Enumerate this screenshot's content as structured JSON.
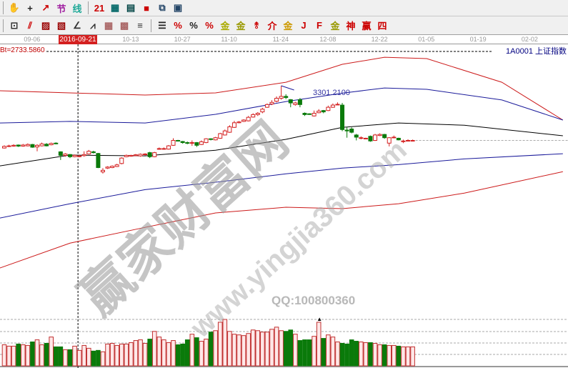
{
  "toolbar1": [
    {
      "name": "hand-icon",
      "g": "✋",
      "c": "#333"
    },
    {
      "name": "crosshair-icon",
      "g": "+",
      "c": "#222"
    },
    {
      "name": "line-tool-icon",
      "g": "↗",
      "c": "#c00"
    },
    {
      "name": "section-icon",
      "g": "节",
      "c": "#a020a0"
    },
    {
      "name": "pattern-icon",
      "g": "线",
      "c": "#2a9"
    },
    {
      "sep": true
    },
    {
      "name": "calendar-icon",
      "g": "21",
      "c": "#c00"
    },
    {
      "name": "calculator-icon",
      "g": "▦",
      "c": "#066"
    },
    {
      "name": "notes-icon",
      "g": "▤",
      "c": "#044"
    },
    {
      "name": "save-icon",
      "g": "■",
      "c": "#c00"
    },
    {
      "name": "network-icon",
      "g": "⧉",
      "c": "#246"
    },
    {
      "name": "printer-icon",
      "g": "▣",
      "c": "#246"
    }
  ],
  "toolbar2": [
    {
      "name": "period-icon",
      "g": "⊡",
      "c": "#333"
    },
    {
      "name": "fan-lines-icon",
      "g": "⫽",
      "c": "#c00"
    },
    {
      "name": "gann-box-icon",
      "g": "▨",
      "c": "#900"
    },
    {
      "name": "gann-grid-icon",
      "g": "▧",
      "c": "#900"
    },
    {
      "name": "angle-icon",
      "g": "∠",
      "c": "#333"
    },
    {
      "name": "zigzag-icon",
      "g": "⩘",
      "c": "#333"
    },
    {
      "name": "grid-icon",
      "g": "▦",
      "c": "#a66"
    },
    {
      "name": "grid2-icon",
      "g": "▩",
      "c": "#a66"
    },
    {
      "name": "parallel-icon",
      "g": "≡",
      "c": "#333"
    },
    {
      "sep": true
    },
    {
      "name": "fibonacci-icon",
      "g": "☰",
      "c": "#222"
    },
    {
      "name": "percent-line-icon",
      "g": "%",
      "c": "#c00"
    },
    {
      "name": "percent-icon",
      "g": "%",
      "c": "#222"
    },
    {
      "name": "percent-bands-icon",
      "g": "%",
      "c": "#c00"
    },
    {
      "name": "gold-circle-icon",
      "g": "金",
      "c": "#aa0"
    },
    {
      "name": "gold-lines-icon",
      "g": "金",
      "c": "#990"
    },
    {
      "name": "arrow-tool-icon",
      "g": "⥉",
      "c": "#c00"
    },
    {
      "name": "tower-icon",
      "g": "介",
      "c": "#c00"
    },
    {
      "name": "gold-ratio-icon",
      "g": "金",
      "c": "#c90"
    },
    {
      "name": "j-angle-icon",
      "g": "J",
      "c": "#c00"
    },
    {
      "name": "f-angle-icon",
      "g": "F",
      "c": "#c00"
    },
    {
      "name": "gold-angle-icon",
      "g": "金",
      "c": "#990"
    },
    {
      "name": "shen-angle-icon",
      "g": "神",
      "c": "#c00"
    },
    {
      "name": "ying-angle-icon",
      "g": "赢",
      "c": "#c00"
    },
    {
      "name": "four-angle-icon",
      "g": "四",
      "c": "#c00"
    }
  ],
  "axis": {
    "selected_date": "2016-09-21",
    "ticks": [
      {
        "label": "09-06",
        "i": 6
      },
      {
        "label": "10-13",
        "i": 27
      },
      {
        "label": "10-27",
        "i": 38
      },
      {
        "label": "11-10",
        "i": 48
      },
      {
        "label": "11-24",
        "i": 59
      },
      {
        "label": "12-08",
        "i": 69
      },
      {
        "label": "12-22",
        "i": 80
      },
      {
        "label": "01-05",
        "i": 90
      },
      {
        "label": "01-19",
        "i": 101
      },
      {
        "label": "02-02",
        "i": 112
      }
    ]
  },
  "readout": "Bt=2733.5860",
  "index_name": "1A0001  上证指数",
  "high_label": "3301.2100",
  "watermark": {
    "qq": "QQ:100800360",
    "cn": "赢家财富网",
    "url": "www.yingjia360.com"
  },
  "colors": {
    "up": "#d42020",
    "down": "#0a7a0a",
    "mid": "#000000",
    "inner_band": "#1a1a9a",
    "outer_band": "#cc1a1a"
  },
  "chart_data": {
    "type": "candlestick",
    "candle_format": [
      "open",
      "close",
      "high",
      "low"
    ],
    "candles": [
      [
        3072,
        3078,
        3082,
        3070
      ],
      [
        3078,
        3080,
        3084,
        3076
      ],
      [
        3079,
        3082,
        3086,
        3077
      ],
      [
        3083,
        3079,
        3085,
        3076
      ],
      [
        3079,
        3083,
        3087,
        3077
      ],
      [
        3080,
        3085,
        3089,
        3078
      ],
      [
        3085,
        3075,
        3087,
        3073
      ],
      [
        3076,
        3082,
        3086,
        3060
      ],
      [
        3080,
        3087,
        3092,
        3078
      ],
      [
        3086,
        3080,
        3090,
        3078
      ],
      [
        3084,
        3089,
        3092,
        3082
      ],
      [
        3090,
        3088,
        3093,
        3086
      ],
      [
        3058,
        3045,
        3060,
        3028
      ],
      [
        3045,
        3050,
        3053,
        3040
      ],
      [
        3048,
        3040,
        3050,
        3035
      ],
      [
        3040,
        3045,
        3048,
        3038
      ],
      [
        3040,
        3043,
        3047,
        3038
      ],
      [
        3044,
        3048,
        3060,
        3040
      ],
      [
        3050,
        3060,
        3065,
        3048
      ],
      [
        3058,
        3055,
        3062,
        3052
      ],
      [
        3052,
        3000,
        3054,
        2998
      ],
      [
        2984,
        2990,
        2998,
        2978
      ],
      [
        2998,
        3002,
        3005,
        2995
      ],
      [
        3000,
        3005,
        3008,
        2998
      ],
      [
        3004,
        3010,
        3014,
        3002
      ],
      [
        3015,
        3035,
        3038,
        3012
      ],
      [
        3040,
        3045,
        3048,
        3038
      ],
      [
        3042,
        3045,
        3047,
        3040
      ],
      [
        3044,
        3047,
        3050,
        3042
      ],
      [
        3043,
        3049,
        3052,
        3040
      ],
      [
        3048,
        3050,
        3053,
        3045
      ],
      [
        3055,
        3040,
        3058,
        3035
      ],
      [
        3040,
        3055,
        3058,
        3038
      ],
      [
        3068,
        3070,
        3074,
        3066
      ],
      [
        3070,
        3070,
        3074,
        3066
      ],
      [
        3068,
        3080,
        3083,
        3066
      ],
      [
        3082,
        3100,
        3108,
        3080
      ],
      [
        3100,
        3098,
        3102,
        3096
      ],
      [
        3096,
        3092,
        3098,
        3088
      ],
      [
        3092,
        3090,
        3096,
        3086
      ],
      [
        3090,
        3092,
        3100,
        3080
      ],
      [
        3092,
        3082,
        3094,
        3076
      ],
      [
        3085,
        3095,
        3100,
        3083
      ],
      [
        3092,
        3106,
        3108,
        3090
      ],
      [
        3106,
        3104,
        3108,
        3100
      ],
      [
        3102,
        3110,
        3113,
        3100
      ],
      [
        3108,
        3125,
        3128,
        3106
      ],
      [
        3120,
        3135,
        3140,
        3118
      ],
      [
        3130,
        3150,
        3156,
        3128
      ],
      [
        3148,
        3165,
        3172,
        3146
      ],
      [
        3165,
        3168,
        3171,
        3163
      ],
      [
        3170,
        3175,
        3178,
        3168
      ],
      [
        3172,
        3185,
        3190,
        3170
      ],
      [
        3186,
        3195,
        3200,
        3184
      ],
      [
        3195,
        3200,
        3204,
        3190
      ],
      [
        3205,
        3215,
        3220,
        3200
      ],
      [
        3222,
        3232,
        3236,
        3220
      ],
      [
        3234,
        3240,
        3248,
        3230
      ],
      [
        3244,
        3255,
        3262,
        3240
      ],
      [
        3255,
        3262,
        3301.21,
        3250
      ],
      [
        3262,
        3258,
        3270,
        3252
      ],
      [
        3250,
        3238,
        3252,
        3222
      ],
      [
        3232,
        3238,
        3242,
        3228
      ],
      [
        3250,
        3232,
        3256,
        3222
      ],
      [
        3200,
        3195,
        3203,
        3190
      ],
      [
        3198,
        3196,
        3200,
        3194
      ],
      [
        3190,
        3200,
        3210,
        3188
      ],
      [
        3202,
        3208,
        3215,
        3200
      ],
      [
        3210,
        3205,
        3212,
        3200
      ],
      [
        3210,
        3222,
        3228,
        3208
      ],
      [
        3222,
        3230,
        3236,
        3220
      ],
      [
        3232,
        3233,
        3240,
        3230
      ],
      [
        3230,
        3140,
        3238,
        3134
      ],
      [
        3138,
        3135,
        3150,
        3110
      ],
      [
        3142,
        3130,
        3148,
        3126
      ],
      [
        3120,
        3112,
        3124,
        3100
      ],
      [
        3108,
        3110,
        3115,
        3104
      ],
      [
        3108,
        3108,
        3110,
        3106
      ],
      [
        3115,
        3098,
        3118,
        3095
      ],
      [
        3100,
        3120,
        3124,
        3098
      ],
      [
        3118,
        3122,
        3126,
        3116
      ],
      [
        3122,
        3110,
        3124,
        3106
      ],
      [
        3090,
        3110,
        3112,
        3078
      ],
      [
        3112,
        3112,
        3118,
        3108
      ],
      [
        3108,
        3102,
        3110,
        3100
      ],
      [
        3098,
        3098,
        3103,
        3090
      ],
      [
        3100,
        3100,
        3104,
        3096
      ],
      [
        3100,
        3100,
        3103,
        3098
      ]
    ],
    "volume": [
      30,
      28,
      28,
      31,
      30,
      29,
      34,
      37,
      30,
      32,
      41,
      27,
      27,
      23,
      23,
      28,
      22,
      29,
      25,
      21,
      22,
      20,
      31,
      32,
      29,
      31,
      31,
      33,
      36,
      37,
      32,
      38,
      49,
      41,
      37,
      33,
      36,
      30,
      31,
      37,
      45,
      40,
      35,
      38,
      48,
      50,
      62,
      66,
      49,
      45,
      44,
      43,
      46,
      51,
      50,
      48,
      48,
      52,
      55,
      50,
      49,
      51,
      45,
      36,
      37,
      37,
      42,
      62,
      39,
      44,
      41,
      34,
      32,
      31,
      37,
      35,
      34,
      33,
      33,
      32,
      30,
      30,
      29,
      29,
      28,
      27,
      27,
      27
    ],
    "volume_max_label_marker": "▲",
    "lines": [
      {
        "color": "outer_band",
        "points": [
          [
            -1,
            3283
          ],
          [
            14,
            3275
          ],
          [
            30,
            3267
          ],
          [
            45,
            3275
          ],
          [
            60,
            3314
          ],
          [
            72,
            3380
          ],
          [
            81,
            3406
          ],
          [
            90,
            3401
          ],
          [
            106,
            3314
          ],
          [
            119,
            3175
          ]
        ]
      },
      {
        "color": "inner_band",
        "points": [
          [
            -1,
            3164
          ],
          [
            14,
            3170
          ],
          [
            30,
            3164
          ],
          [
            45,
            3196
          ],
          [
            60,
            3243
          ],
          [
            72,
            3274
          ],
          [
            81,
            3293
          ],
          [
            90,
            3288
          ],
          [
            106,
            3249
          ],
          [
            119,
            3175
          ]
        ]
      },
      {
        "color": "mid",
        "points": [
          [
            -1,
            3006
          ],
          [
            14,
            3046
          ],
          [
            30,
            3043
          ],
          [
            45,
            3064
          ],
          [
            60,
            3104
          ],
          [
            72,
            3148
          ],
          [
            84,
            3164
          ],
          [
            98,
            3156
          ],
          [
            119,
            3117
          ]
        ]
      },
      {
        "color": "inner_band",
        "points": [
          [
            -1,
            2814
          ],
          [
            14,
            2867
          ],
          [
            30,
            2919
          ],
          [
            45,
            2946
          ],
          [
            60,
            2977
          ],
          [
            72,
            2998
          ],
          [
            84,
            3011
          ],
          [
            98,
            3032
          ],
          [
            119,
            3051
          ]
        ]
      },
      {
        "color": "outer_band",
        "points": [
          [
            -1,
            2630
          ],
          [
            14,
            2722
          ],
          [
            30,
            2780
          ],
          [
            45,
            2833
          ],
          [
            60,
            2854
          ],
          [
            72,
            2849
          ],
          [
            84,
            2867
          ],
          [
            98,
            2906
          ],
          [
            119,
            2985
          ]
        ]
      }
    ],
    "last_price": 3100,
    "crosshair_index": 15.7
  }
}
